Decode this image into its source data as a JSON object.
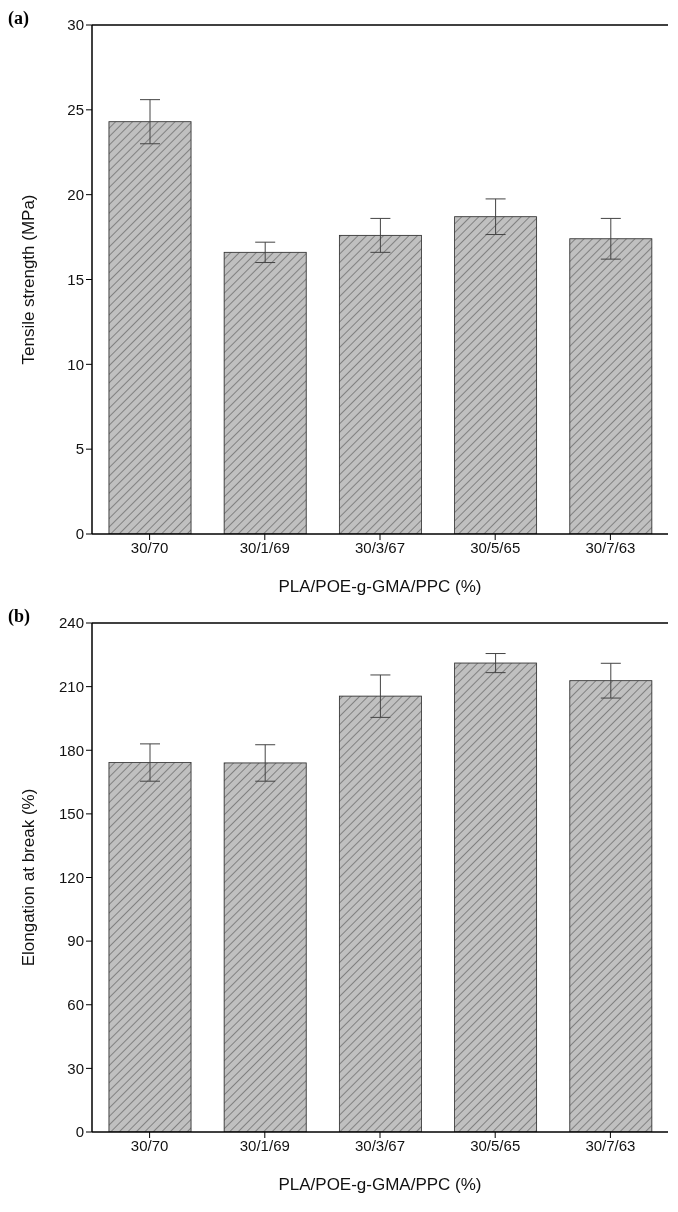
{
  "chart_data": [
    {
      "type": "bar",
      "annotations": [
        "(a)"
      ],
      "xlabel": "PLA/POE-g-GMA/PPC (%)",
      "ylabel": "Tensile strength (MPa)",
      "categories": [
        "30/70",
        "30/1/69",
        "30/3/67",
        "30/5/65",
        "30/7/63"
      ],
      "values": [
        24.3,
        16.6,
        17.6,
        18.7,
        17.4
      ],
      "errors": [
        1.3,
        0.6,
        1.0,
        1.05,
        1.2
      ],
      "color": "#c0c0c0",
      "ylim": [
        0,
        30
      ],
      "yticks": [
        0,
        5,
        10,
        15,
        20,
        25,
        30
      ],
      "grid": false,
      "legend": false
    },
    {
      "type": "bar",
      "annotations": [
        "(b)"
      ],
      "xlabel": "PLA/POE-g-GMA/PPC (%)",
      "ylabel": "Elongation at break (%)",
      "categories": [
        "30/70",
        "30/1/69",
        "30/3/67",
        "30/5/65",
        "30/7/63"
      ],
      "values": [
        174.2,
        174.0,
        205.5,
        221.1,
        212.8
      ],
      "errors": [
        8.8,
        8.6,
        10,
        4.5,
        8.2
      ],
      "color": "#c0c0c0",
      "ylim": [
        0,
        240
      ],
      "yticks": [
        0,
        30,
        60,
        90,
        120,
        150,
        180,
        210,
        240
      ],
      "grid": false,
      "legend": false
    }
  ]
}
